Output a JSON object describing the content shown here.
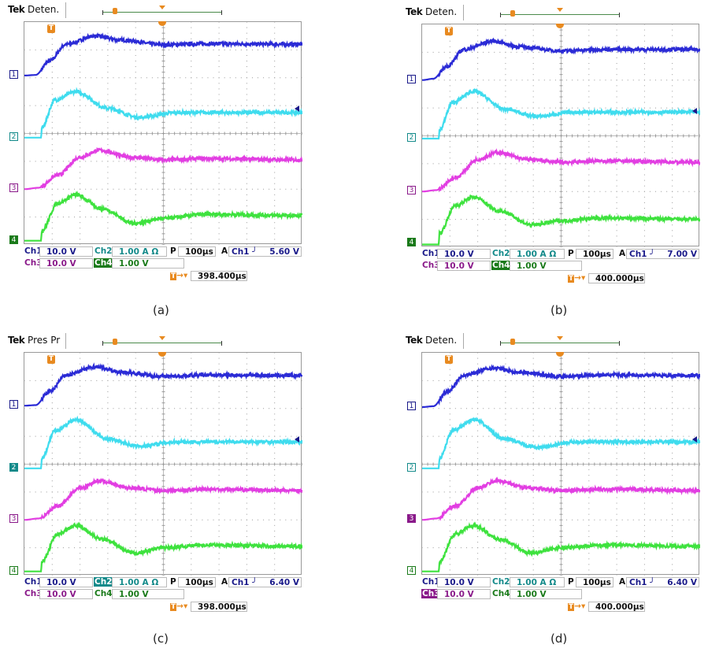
{
  "colors": {
    "ch1": "#2b2bd6",
    "ch2": "#3fdcee",
    "ch3": "#e23ee2",
    "ch4": "#3ee23e",
    "ch1_text": "#1a1a8a",
    "ch2_text": "#138a8a",
    "ch3_text": "#8a1a8a",
    "ch4_text": "#1a7a1a",
    "trigger": "#e88a20"
  },
  "panels": [
    {
      "caption": "(a)",
      "brand": "Tek",
      "mode": "Deten.",
      "ch1_label": "Ch1",
      "ch1_scale": "10.0 V",
      "ch2_label": "Ch2",
      "ch2_scale": "1.00 A Ω",
      "ch3_label": "Ch3",
      "ch3_scale": "10.0 V",
      "ch4_label": "Ch4",
      "ch4_scale": "1.00 V",
      "timebase_label": "P",
      "timebase": "100µs",
      "trig_label": "A",
      "trig_source": "Ch1",
      "trig_slope": "rising-edge-icon",
      "trig_level": "5.60 V",
      "trig_time": "398.400µs",
      "highlighted_channel": "4",
      "trigger_marker": "T",
      "marker_labels": [
        "1",
        "2",
        "3",
        "4"
      ]
    },
    {
      "caption": "(b)",
      "brand": "Tek",
      "mode": "Deten.",
      "ch1_label": "Ch1",
      "ch1_scale": "10.0 V",
      "ch2_label": "Ch2",
      "ch2_scale": "1.00 A Ω",
      "ch3_label": "Ch3",
      "ch3_scale": "10.0 V",
      "ch4_label": "Ch4",
      "ch4_scale": "1.00 V",
      "timebase_label": "P",
      "timebase": "100µs",
      "trig_label": "A",
      "trig_source": "Ch1",
      "trig_slope": "rising-edge-icon",
      "trig_level": "7.00 V",
      "trig_time": "400.000µs",
      "highlighted_channel": "4",
      "trigger_marker": "T",
      "marker_labels": [
        "1",
        "2",
        "3",
        "4"
      ]
    },
    {
      "caption": "(c)",
      "brand": "Tek",
      "mode": "Pres Pr",
      "ch1_label": "Ch1",
      "ch1_scale": "10.0 V",
      "ch2_label": "Ch2",
      "ch2_scale": "1.00 A Ω",
      "ch3_label": "Ch3",
      "ch3_scale": "10.0 V",
      "ch4_label": "Ch4",
      "ch4_scale": "1.00 V",
      "timebase_label": "P",
      "timebase": "100µs",
      "trig_label": "A",
      "trig_source": "Ch1",
      "trig_slope": "rising-edge-icon",
      "trig_level": "6.40 V",
      "trig_time": "398.000µs",
      "highlighted_channel": "2",
      "trigger_marker": "T",
      "marker_labels": [
        "1",
        "2",
        "3",
        "4"
      ]
    },
    {
      "caption": "(d)",
      "brand": "Tek",
      "mode": "Deten.",
      "ch1_label": "Ch1",
      "ch1_scale": "10.0 V",
      "ch2_label": "Ch2",
      "ch2_scale": "1.00 A Ω",
      "ch3_label": "Ch3",
      "ch3_scale": "10.0 V",
      "ch4_label": "Ch4",
      "ch4_scale": "1.00 V",
      "timebase_label": "P",
      "timebase": "100µs",
      "trig_label": "A",
      "trig_source": "Ch1",
      "trig_slope": "rising-edge-icon",
      "trig_level": "6.40 V",
      "trig_time": "400.000µs",
      "highlighted_channel": "3",
      "trigger_marker": "T",
      "marker_labels": [
        "1",
        "2",
        "3",
        "4"
      ]
    }
  ],
  "chart_data": [
    {
      "type": "line",
      "x_unit": "µs",
      "y_unit": "div",
      "xlim": [
        0,
        1000
      ],
      "ylim": [
        0,
        8
      ],
      "grid": true,
      "series": [
        {
          "name": "Ch1",
          "x": [
            0,
            40,
            90,
            150,
            255,
            350,
            500,
            650,
            1000
          ],
          "y": [
            6.08,
            6.1,
            6.6,
            7.2,
            7.5,
            7.35,
            7.18,
            7.22,
            7.2
          ]
        },
        {
          "name": "Ch2",
          "x": [
            0,
            60,
            62,
            110,
            185,
            300,
            410,
            550,
            1000
          ],
          "y": [
            3.85,
            3.85,
            4.2,
            5.2,
            5.5,
            4.9,
            4.58,
            4.75,
            4.75
          ]
        },
        {
          "name": "Ch3",
          "x": [
            0,
            50,
            120,
            200,
            270,
            380,
            500,
            650,
            1000
          ],
          "y": [
            2.0,
            2.05,
            2.5,
            3.15,
            3.4,
            3.15,
            3.05,
            3.1,
            3.05
          ]
        },
        {
          "name": "Ch4",
          "x": [
            0,
            60,
            62,
            120,
            185,
            280,
            395,
            500,
            650,
            1000
          ],
          "y": [
            0.15,
            0.15,
            0.5,
            1.5,
            1.8,
            1.3,
            0.77,
            0.95,
            1.1,
            1.05
          ]
        }
      ]
    },
    {
      "type": "line",
      "x_unit": "µs",
      "y_unit": "div",
      "xlim": [
        0,
        1000
      ],
      "ylim": [
        0,
        8
      ],
      "grid": true,
      "series": [
        {
          "name": "Ch1",
          "x": [
            0,
            40,
            90,
            150,
            255,
            350,
            500,
            650,
            1000
          ],
          "y": [
            6.0,
            6.05,
            6.5,
            7.1,
            7.4,
            7.2,
            7.05,
            7.1,
            7.1
          ]
        },
        {
          "name": "Ch2",
          "x": [
            0,
            60,
            62,
            110,
            185,
            300,
            410,
            550,
            1000
          ],
          "y": [
            3.9,
            3.9,
            4.2,
            5.2,
            5.6,
            4.95,
            4.7,
            4.85,
            4.85
          ]
        },
        {
          "name": "Ch3",
          "x": [
            0,
            50,
            120,
            200,
            270,
            380,
            500,
            650,
            1000
          ],
          "y": [
            2.0,
            2.05,
            2.5,
            3.15,
            3.4,
            3.15,
            3.05,
            3.1,
            3.05
          ]
        },
        {
          "name": "Ch4",
          "x": [
            0,
            60,
            62,
            120,
            185,
            280,
            395,
            500,
            650,
            1000
          ],
          "y": [
            0.1,
            0.1,
            0.5,
            1.5,
            1.8,
            1.3,
            0.8,
            0.95,
            1.05,
            1.0
          ]
        }
      ]
    },
    {
      "type": "line",
      "x_unit": "µs",
      "y_unit": "div",
      "xlim": [
        0,
        1000
      ],
      "ylim": [
        0,
        8
      ],
      "grid": true,
      "series": [
        {
          "name": "Ch1",
          "x": [
            0,
            40,
            90,
            150,
            255,
            350,
            500,
            650,
            1000
          ],
          "y": [
            6.1,
            6.12,
            6.6,
            7.2,
            7.5,
            7.3,
            7.15,
            7.2,
            7.18
          ]
        },
        {
          "name": "Ch2",
          "x": [
            0,
            60,
            62,
            110,
            185,
            300,
            410,
            550,
            1000
          ],
          "y": [
            3.85,
            3.85,
            4.2,
            5.2,
            5.6,
            4.9,
            4.65,
            4.8,
            4.8
          ]
        },
        {
          "name": "Ch3",
          "x": [
            0,
            50,
            120,
            200,
            270,
            380,
            500,
            650,
            1000
          ],
          "y": [
            2.0,
            2.05,
            2.5,
            3.15,
            3.4,
            3.15,
            3.05,
            3.1,
            3.05
          ]
        },
        {
          "name": "Ch4",
          "x": [
            0,
            60,
            62,
            120,
            185,
            280,
            395,
            500,
            650,
            1000
          ],
          "y": [
            0.15,
            0.15,
            0.5,
            1.5,
            1.8,
            1.3,
            0.8,
            1.0,
            1.1,
            1.05
          ]
        }
      ]
    },
    {
      "type": "line",
      "x_unit": "µs",
      "y_unit": "div",
      "xlim": [
        0,
        1000
      ],
      "ylim": [
        0,
        8
      ],
      "grid": true,
      "series": [
        {
          "name": "Ch1",
          "x": [
            0,
            40,
            90,
            150,
            255,
            350,
            500,
            650,
            1000
          ],
          "y": [
            6.05,
            6.08,
            6.6,
            7.2,
            7.45,
            7.3,
            7.15,
            7.2,
            7.18
          ]
        },
        {
          "name": "Ch2",
          "x": [
            0,
            60,
            62,
            110,
            185,
            300,
            410,
            550,
            1000
          ],
          "y": [
            3.85,
            3.85,
            4.2,
            5.2,
            5.6,
            4.9,
            4.6,
            4.8,
            4.8
          ]
        },
        {
          "name": "Ch3",
          "x": [
            0,
            50,
            120,
            200,
            270,
            380,
            500,
            650,
            1000
          ],
          "y": [
            2.0,
            2.05,
            2.5,
            3.15,
            3.4,
            3.15,
            3.05,
            3.1,
            3.05
          ]
        },
        {
          "name": "Ch4",
          "x": [
            0,
            60,
            62,
            120,
            185,
            280,
            395,
            500,
            650,
            1000
          ],
          "y": [
            0.15,
            0.15,
            0.5,
            1.5,
            1.8,
            1.3,
            0.8,
            1.0,
            1.1,
            1.05
          ]
        }
      ]
    }
  ]
}
